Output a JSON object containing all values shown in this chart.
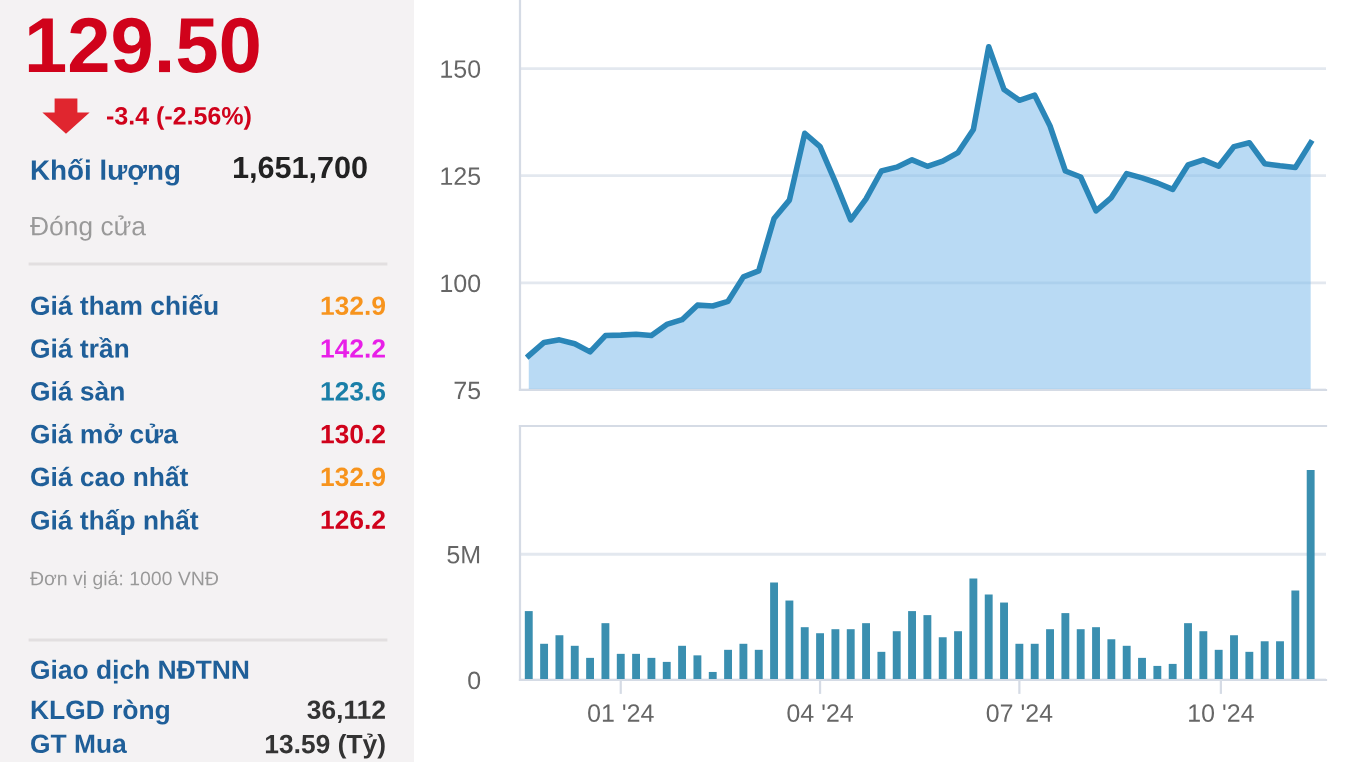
{
  "chart_data": [
    {
      "type": "other",
      "title": "129.50",
      "subtitle": "-3.4 (-2.56%)",
      "annotations": [
        "Khối lượng",
        "1,651,700",
        "Đóng cửa",
        "Giá tham chiếu",
        "132.9",
        "Giá trần",
        "142.2",
        "Giá sàn",
        "123.6",
        "Giá mở cửa",
        "130.2",
        "Giá cao nhất",
        "132.9",
        "Giá thấp nhất",
        "126.2",
        "Đơn vị giá: 1000 VNĐ",
        "Giao dịch NĐTNN",
        "KLGD ròng",
        "36,112",
        "GT Mua",
        "13.59 (Tỷ)"
      ]
    },
    {
      "type": "area",
      "x": [
        "2023-11-20",
        "2023-11-27",
        "2023-12-04",
        "2023-12-11",
        "2023-12-18",
        "2023-12-25",
        "2024-01-01",
        "2024-01-08",
        "2024-01-15",
        "2024-01-22",
        "2024-01-29",
        "2024-02-05",
        "2024-02-12",
        "2024-02-19",
        "2024-02-26",
        "2024-03-04",
        "2024-03-11",
        "2024-03-18",
        "2024-03-25",
        "2024-04-01",
        "2024-04-08",
        "2024-04-15",
        "2024-04-22",
        "2024-04-29",
        "2024-05-06",
        "2024-05-13",
        "2024-05-20",
        "2024-05-27",
        "2024-06-03",
        "2024-06-10",
        "2024-06-17",
        "2024-06-24",
        "2024-07-01",
        "2024-07-08",
        "2024-07-15",
        "2024-07-22",
        "2024-07-29",
        "2024-08-05",
        "2024-08-12",
        "2024-08-19",
        "2024-08-26",
        "2024-09-02",
        "2024-09-09",
        "2024-09-16",
        "2024-09-23",
        "2024-09-30",
        "2024-10-07",
        "2024-10-14",
        "2024-10-21",
        "2024-10-28",
        "2024-11-04",
        "2024-11-11"
      ],
      "series": [
        {
          "color": "#2a86b8",
          "values": [
            83.0,
            86.1,
            86.7,
            85.8,
            83.9,
            87.7,
            87.8,
            88.0,
            87.7,
            90.3,
            91.4,
            94.8,
            94.6,
            95.7,
            101.4,
            102.8,
            115.0,
            119.3,
            134.9,
            131.8,
            123.5,
            114.7,
            119.6,
            126.1,
            127.0,
            128.7,
            127.2,
            128.4,
            130.4,
            135.8,
            155.1,
            145.1,
            142.6,
            143.8,
            136.6,
            126.1,
            124.7,
            116.8,
            119.9,
            125.5,
            124.5,
            123.3,
            121.8,
            127.5,
            128.7,
            127.2,
            131.8,
            132.7,
            127.8,
            127.3,
            126.9,
            132.7
          ]
        }
      ],
      "xlim": [
        "2023-11-16",
        "2024-11-18"
      ],
      "ylim": [
        75,
        166
      ],
      "yticks": [
        75,
        100,
        125,
        150
      ],
      "grid": "y",
      "tick_labels": "y"
    },
    {
      "type": "bar",
      "x": [
        "2023-11-20",
        "2023-11-27",
        "2023-12-04",
        "2023-12-11",
        "2023-12-18",
        "2023-12-25",
        "2024-01-01",
        "2024-01-08",
        "2024-01-15",
        "2024-01-22",
        "2024-01-29",
        "2024-02-05",
        "2024-02-12",
        "2024-02-19",
        "2024-02-26",
        "2024-03-04",
        "2024-03-11",
        "2024-03-18",
        "2024-03-25",
        "2024-04-01",
        "2024-04-08",
        "2024-04-15",
        "2024-04-22",
        "2024-04-29",
        "2024-05-06",
        "2024-05-13",
        "2024-05-20",
        "2024-05-27",
        "2024-06-03",
        "2024-06-10",
        "2024-06-17",
        "2024-06-24",
        "2024-07-01",
        "2024-07-08",
        "2024-07-15",
        "2024-07-22",
        "2024-07-29",
        "2024-08-05",
        "2024-08-12",
        "2024-08-19",
        "2024-08-26",
        "2024-09-02",
        "2024-09-09",
        "2024-09-16",
        "2024-09-23",
        "2024-09-30",
        "2024-10-07",
        "2024-10-14",
        "2024-10-21",
        "2024-10-28",
        "2024-11-04",
        "2024-11-11"
      ],
      "series": [
        {
          "color": "#3a8fb0",
          "values": [
            2.74,
            1.44,
            1.78,
            1.36,
            0.88,
            2.26,
            1.04,
            1.04,
            0.88,
            0.72,
            1.36,
            0.98,
            0.32,
            1.2,
            1.44,
            1.2,
            3.88,
            3.16,
            2.1,
            1.86,
            2.02,
            2.02,
            2.26,
            1.12,
            1.94,
            2.74,
            2.58,
            1.7,
            1.94,
            4.04,
            3.4,
            3.08,
            1.44,
            1.44,
            2.02,
            2.66,
            2.02,
            2.1,
            1.62,
            1.36,
            0.88,
            0.56,
            0.64,
            2.26,
            1.94,
            1.2,
            1.78,
            1.12,
            1.54,
            1.54,
            3.56,
            8.35
          ]
        }
      ],
      "xlim": [
        "2023-11-16",
        "2024-11-18"
      ],
      "xticks": [
        {
          "value": "2024-01-01",
          "label": "01 '24"
        },
        {
          "value": "2024-04-01",
          "label": "04 '24"
        },
        {
          "value": "2024-07-01",
          "label": "07 '24"
        },
        {
          "value": "2024-10-01",
          "label": "10 '24"
        }
      ],
      "ylim": [
        0,
        10.1
      ],
      "yticks": [
        0,
        {
          "value": 5,
          "label": "5M"
        }
      ],
      "grid": "y"
    }
  ]
}
